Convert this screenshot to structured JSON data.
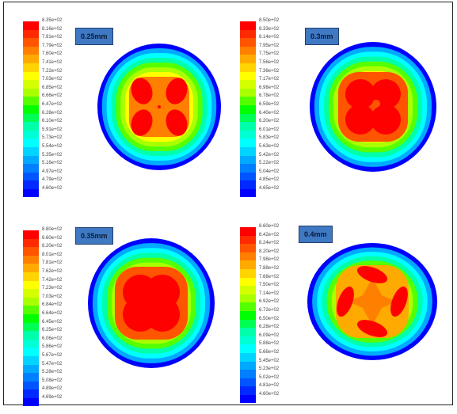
{
  "panels": [
    {
      "label": "0.25mm",
      "ticks": [
        "8.35e+02",
        "8.16e+02",
        "7.91e+02",
        "7.79e+02",
        "7.60e+02",
        "7.41e+02",
        "7.22e+02",
        "7.03e+02",
        "6.85e+02",
        "6.66e+02",
        "6.47e+02",
        "6.28e+02",
        "6.10e+02",
        "5.91e+02",
        "5.73e+02",
        "5.54e+02",
        "5.35e+02",
        "5.16e+02",
        "4.97e+02",
        "4.79e+02",
        "4.60e+02"
      ],
      "hot_shape": "four-lobes-separate"
    },
    {
      "label": "0.3mm",
      "ticks": [
        "8.50e+02",
        "8.33e+02",
        "8.14e+02",
        "7.95e+02",
        "7.75e+02",
        "7.56e+02",
        "7.36e+02",
        "7.17e+02",
        "6.98e+02",
        "6.78e+02",
        "6.59e+02",
        "6.40e+02",
        "6.20e+02",
        "6.01e+02",
        "5.83e+02",
        "5.63e+02",
        "5.42e+02",
        "5.22e+02",
        "5.04e+02",
        "4.85e+02",
        "4.65e+02"
      ],
      "hot_shape": "clover"
    },
    {
      "label": "0.35mm",
      "ticks": [
        "8.80e+02",
        "8.60e+02",
        "8.20e+02",
        "8.01e+02",
        "7.81e+02",
        "7.62e+02",
        "7.42e+02",
        "7.23e+02",
        "7.03e+02",
        "6.84e+02",
        "6.64e+02",
        "6.45e+02",
        "6.25e+02",
        "6.06e+02",
        "5.86e+02",
        "5.67e+02",
        "5.47e+02",
        "5.28e+02",
        "5.08e+02",
        "4.89e+02",
        "4.69e+02"
      ],
      "hot_shape": "merged-blob"
    },
    {
      "label": "0.4mm",
      "ticks": [
        "8.60e+02",
        "8.42e+02",
        "8.24e+02",
        "8.20e+02",
        "7.98e+02",
        "7.88e+02",
        "7.68e+02",
        "7.50e+02",
        "7.14e+02",
        "6.92e+02",
        "6.72e+02",
        "6.50e+02",
        "6.28e+02",
        "6.09e+02",
        "5.88e+02",
        "5.66e+02",
        "5.45e+02",
        "5.23e+02",
        "5.02e+02",
        "4.81e+02",
        "4.60e+02"
      ],
      "hot_shape": "four-lobes-with-star"
    }
  ],
  "colormap": [
    "#ff0000",
    "#ff2a00",
    "#ff5500",
    "#ff7f00",
    "#ffaa00",
    "#ffd400",
    "#ffff00",
    "#d4ff00",
    "#aaff00",
    "#55ff00",
    "#00ff00",
    "#00ff55",
    "#00ffaa",
    "#00ffd4",
    "#00ffff",
    "#00d4ff",
    "#00aaff",
    "#0080ff",
    "#0055ff",
    "#002aff",
    "#0000ff"
  ]
}
